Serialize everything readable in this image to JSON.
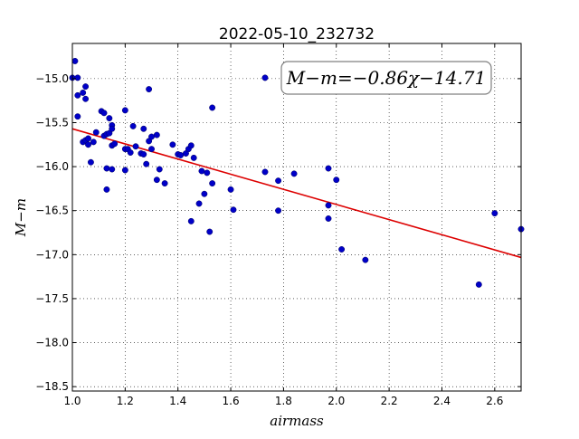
{
  "chart_data": {
    "type": "scatter",
    "title": "2022-05-10_232732",
    "xlabel": "airmass",
    "ylabel": "M−m",
    "annotation": "M−m=−0.86χ−14.71",
    "xlim": [
      1.0,
      2.7
    ],
    "ylim": [
      -18.55,
      -14.6
    ],
    "xticks": [
      "1.0",
      "1.2",
      "1.4",
      "1.6",
      "1.8",
      "2.0",
      "2.2",
      "2.4",
      "2.6"
    ],
    "yticks": [
      "−15.0",
      "−15.5",
      "−16.0",
      "−16.5",
      "−17.0",
      "−17.5",
      "−18.0",
      "−18.5"
    ],
    "grid": true,
    "fit": {
      "slope": -0.86,
      "intercept": -14.71,
      "color": "#dd0000"
    },
    "marker_color": "#0000c8",
    "points": [
      [
        1.0,
        -14.99
      ],
      [
        1.01,
        -14.8
      ],
      [
        1.02,
        -14.99
      ],
      [
        1.02,
        -15.43
      ],
      [
        1.02,
        -15.19
      ],
      [
        1.04,
        -15.16
      ],
      [
        1.05,
        -15.09
      ],
      [
        1.05,
        -15.23
      ],
      [
        1.04,
        -15.72
      ],
      [
        1.05,
        -15.7
      ],
      [
        1.06,
        -15.68
      ],
      [
        1.06,
        -15.75
      ],
      [
        1.07,
        -15.95
      ],
      [
        1.08,
        -15.72
      ],
      [
        1.09,
        -15.61
      ],
      [
        1.11,
        -15.37
      ],
      [
        1.12,
        -15.39
      ],
      [
        1.12,
        -15.65
      ],
      [
        1.13,
        -15.63
      ],
      [
        1.14,
        -15.45
      ],
      [
        1.14,
        -15.62
      ],
      [
        1.13,
        -16.02
      ],
      [
        1.15,
        -16.03
      ],
      [
        1.13,
        -16.26
      ],
      [
        1.15,
        -15.53
      ],
      [
        1.15,
        -15.57
      ],
      [
        1.15,
        -15.76
      ],
      [
        1.16,
        -15.74
      ],
      [
        1.2,
        -15.36
      ],
      [
        1.2,
        -15.8
      ],
      [
        1.21,
        -15.8
      ],
      [
        1.22,
        -15.84
      ],
      [
        1.23,
        -15.54
      ],
      [
        1.24,
        -15.77
      ],
      [
        1.2,
        -16.04
      ],
      [
        1.26,
        -15.85
      ],
      [
        1.27,
        -15.86
      ],
      [
        1.27,
        -15.57
      ],
      [
        1.28,
        -15.97
      ],
      [
        1.29,
        -15.12
      ],
      [
        1.29,
        -15.71
      ],
      [
        1.3,
        -15.66
      ],
      [
        1.3,
        -15.8
      ],
      [
        1.32,
        -15.64
      ],
      [
        1.32,
        -16.15
      ],
      [
        1.33,
        -16.03
      ],
      [
        1.35,
        -16.19
      ],
      [
        1.38,
        -15.75
      ],
      [
        1.4,
        -15.86
      ],
      [
        1.41,
        -15.87
      ],
      [
        1.43,
        -15.85
      ],
      [
        1.44,
        -15.8
      ],
      [
        1.45,
        -15.76
      ],
      [
        1.46,
        -15.9
      ],
      [
        1.45,
        -16.62
      ],
      [
        1.48,
        -16.42
      ],
      [
        1.49,
        -16.05
      ],
      [
        1.5,
        -16.31
      ],
      [
        1.51,
        -16.07
      ],
      [
        1.52,
        -16.74
      ],
      [
        1.53,
        -16.19
      ],
      [
        1.53,
        -15.33
      ],
      [
        1.6,
        -16.26
      ],
      [
        1.61,
        -16.49
      ],
      [
        1.73,
        -14.99
      ],
      [
        1.73,
        -16.06
      ],
      [
        1.78,
        -16.16
      ],
      [
        1.78,
        -16.5
      ],
      [
        1.84,
        -16.08
      ],
      [
        1.97,
        -16.02
      ],
      [
        1.97,
        -16.44
      ],
      [
        1.97,
        -16.59
      ],
      [
        2.0,
        -16.15
      ],
      [
        2.02,
        -16.94
      ],
      [
        2.11,
        -17.06
      ],
      [
        2.54,
        -17.34
      ],
      [
        2.6,
        -16.53
      ],
      [
        2.7,
        -16.71
      ]
    ]
  }
}
